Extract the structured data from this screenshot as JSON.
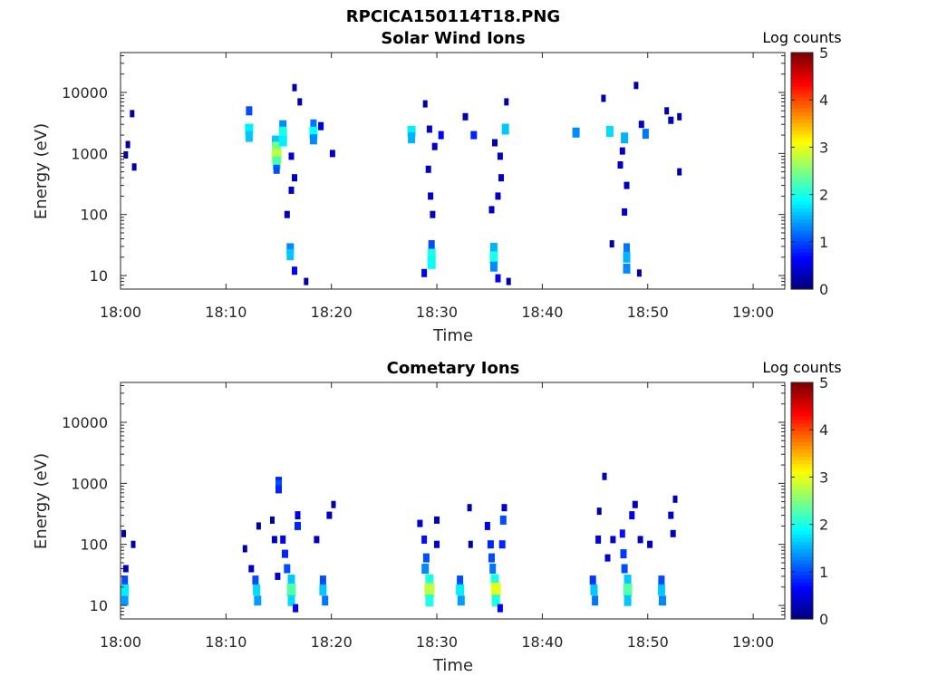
{
  "figure_title": "RPCICA150114T18.PNG",
  "chart_data": [
    {
      "type": "heatmap",
      "title": "Solar Wind Ions",
      "xlabel": "Time",
      "ylabel": "Energy (eV)",
      "x_ticks": [
        "18:00",
        "18:10",
        "18:20",
        "18:30",
        "18:40",
        "18:50",
        "19:00"
      ],
      "x_range_minutes": [
        0,
        63
      ],
      "y_scale": "log",
      "y_ticks": [
        "10",
        "100",
        "1000",
        "10000"
      ],
      "y_range": [
        6,
        45000
      ],
      "colorbar": {
        "label": "Log counts",
        "ticks": [
          "0",
          "1",
          "2",
          "3",
          "4",
          "5"
        ],
        "range": [
          0,
          5
        ],
        "colormap": "jet"
      },
      "patches": [
        {
          "t": 1.1,
          "e": 4500,
          "v": 0.2
        },
        {
          "t": 0.7,
          "e": 1400,
          "v": 0.2
        },
        {
          "t": 0.5,
          "e": 950,
          "v": 0.2
        },
        {
          "t": 1.3,
          "e": 600,
          "v": 0.2
        },
        {
          "t": 12.2,
          "e": 5000,
          "v": 1.0
        },
        {
          "t": 12.2,
          "e": 2500,
          "v": 1.8
        },
        {
          "t": 12.2,
          "e": 1900,
          "v": 1.6
        },
        {
          "t": 14.7,
          "e": 1600,
          "v": 1.6
        },
        {
          "t": 14.8,
          "e": 1200,
          "v": 2.5
        },
        {
          "t": 14.8,
          "e": 900,
          "v": 2.8
        },
        {
          "t": 14.8,
          "e": 700,
          "v": 2.2
        },
        {
          "t": 14.8,
          "e": 550,
          "v": 1.0
        },
        {
          "t": 15.4,
          "e": 2900,
          "v": 1.3
        },
        {
          "t": 15.4,
          "e": 2200,
          "v": 2.0
        },
        {
          "t": 15.4,
          "e": 1600,
          "v": 1.8
        },
        {
          "t": 16.2,
          "e": 900,
          "v": 0.4
        },
        {
          "t": 16.5,
          "e": 400,
          "v": 0.3
        },
        {
          "t": 16.2,
          "e": 250,
          "v": 0.3
        },
        {
          "t": 15.8,
          "e": 100,
          "v": 0.3
        },
        {
          "t": 16.5,
          "e": 12000,
          "v": 0.2
        },
        {
          "t": 17.0,
          "e": 7000,
          "v": 0.2
        },
        {
          "t": 18.3,
          "e": 3000,
          "v": 1.2
        },
        {
          "t": 18.3,
          "e": 2200,
          "v": 1.9
        },
        {
          "t": 18.3,
          "e": 1700,
          "v": 1.3
        },
        {
          "t": 19.0,
          "e": 2800,
          "v": 0.5
        },
        {
          "t": 20.1,
          "e": 1000,
          "v": 0.3
        },
        {
          "t": 16.1,
          "e": 28,
          "v": 1.3
        },
        {
          "t": 16.1,
          "e": 22,
          "v": 1.6
        },
        {
          "t": 16.5,
          "e": 12,
          "v": 0.6
        },
        {
          "t": 17.6,
          "e": 8,
          "v": 0.2
        },
        {
          "t": 27.6,
          "e": 2300,
          "v": 1.8
        },
        {
          "t": 27.6,
          "e": 1800,
          "v": 1.5
        },
        {
          "t": 28.9,
          "e": 6500,
          "v": 0.2
        },
        {
          "t": 29.3,
          "e": 2500,
          "v": 0.4
        },
        {
          "t": 29.8,
          "e": 1300,
          "v": 0.3
        },
        {
          "t": 29.2,
          "e": 550,
          "v": 0.3
        },
        {
          "t": 29.4,
          "e": 200,
          "v": 0.3
        },
        {
          "t": 29.6,
          "e": 100,
          "v": 0.3
        },
        {
          "t": 30.4,
          "e": 2000,
          "v": 0.6
        },
        {
          "t": 29.5,
          "e": 32,
          "v": 1.0
        },
        {
          "t": 29.5,
          "e": 22,
          "v": 2.0
        },
        {
          "t": 29.5,
          "e": 16,
          "v": 1.9
        },
        {
          "t": 28.8,
          "e": 11,
          "v": 0.6
        },
        {
          "t": 32.7,
          "e": 4000,
          "v": 0.3
        },
        {
          "t": 33.5,
          "e": 2000,
          "v": 0.8
        },
        {
          "t": 35.5,
          "e": 1500,
          "v": 0.3
        },
        {
          "t": 36.0,
          "e": 900,
          "v": 0.3
        },
        {
          "t": 36.1,
          "e": 400,
          "v": 0.3
        },
        {
          "t": 35.8,
          "e": 200,
          "v": 0.3
        },
        {
          "t": 35.2,
          "e": 120,
          "v": 0.3
        },
        {
          "t": 36.5,
          "e": 2500,
          "v": 1.6
        },
        {
          "t": 36.6,
          "e": 7000,
          "v": 0.2
        },
        {
          "t": 35.4,
          "e": 28,
          "v": 1.5
        },
        {
          "t": 35.4,
          "e": 20,
          "v": 2.0
        },
        {
          "t": 35.4,
          "e": 14,
          "v": 1.3
        },
        {
          "t": 35.8,
          "e": 9,
          "v": 0.6
        },
        {
          "t": 36.8,
          "e": 8,
          "v": 0.2
        },
        {
          "t": 43.2,
          "e": 2200,
          "v": 1.3
        },
        {
          "t": 45.8,
          "e": 8000,
          "v": 0.2
        },
        {
          "t": 46.4,
          "e": 2300,
          "v": 1.7
        },
        {
          "t": 47.8,
          "e": 1800,
          "v": 1.5
        },
        {
          "t": 47.6,
          "e": 1100,
          "v": 0.3
        },
        {
          "t": 47.4,
          "e": 650,
          "v": 0.3
        },
        {
          "t": 48.0,
          "e": 300,
          "v": 0.3
        },
        {
          "t": 47.8,
          "e": 110,
          "v": 0.3
        },
        {
          "t": 48.9,
          "e": 13000,
          "v": 0.2
        },
        {
          "t": 49.4,
          "e": 3000,
          "v": 0.4
        },
        {
          "t": 49.8,
          "e": 2100,
          "v": 1.2
        },
        {
          "t": 48.0,
          "e": 28,
          "v": 1.2
        },
        {
          "t": 48.0,
          "e": 20,
          "v": 1.5
        },
        {
          "t": 48.0,
          "e": 13,
          "v": 1.3
        },
        {
          "t": 46.6,
          "e": 33,
          "v": 0.2
        },
        {
          "t": 49.2,
          "e": 11,
          "v": 0.2
        },
        {
          "t": 51.8,
          "e": 5000,
          "v": 0.2
        },
        {
          "t": 52.2,
          "e": 3500,
          "v": 0.3
        },
        {
          "t": 53.0,
          "e": 4000,
          "v": 0.2
        },
        {
          "t": 53.0,
          "e": 500,
          "v": 0.2
        }
      ]
    },
    {
      "type": "heatmap",
      "title": "Cometary Ions",
      "xlabel": "Time",
      "ylabel": "Energy (eV)",
      "x_ticks": [
        "18:00",
        "18:10",
        "18:20",
        "18:30",
        "18:40",
        "18:50",
        "19:00"
      ],
      "x_range_minutes": [
        0,
        63
      ],
      "y_scale": "log",
      "y_ticks": [
        "10",
        "100",
        "1000",
        "10000"
      ],
      "y_range": [
        6,
        45000
      ],
      "colorbar": {
        "label": "Log counts",
        "ticks": [
          "0",
          "1",
          "2",
          "3",
          "4",
          "5"
        ],
        "range": [
          0,
          5
        ],
        "colormap": "jet"
      },
      "patches": [
        {
          "t": 0.3,
          "e": 150,
          "v": 0.2
        },
        {
          "t": 0.5,
          "e": 40,
          "v": 0.3
        },
        {
          "t": 0.4,
          "e": 26,
          "v": 1.0
        },
        {
          "t": 0.4,
          "e": 18,
          "v": 1.8
        },
        {
          "t": 0.4,
          "e": 12,
          "v": 1.4
        },
        {
          "t": 1.2,
          "e": 100,
          "v": 0.2
        },
        {
          "t": 11.8,
          "e": 85,
          "v": 0.2
        },
        {
          "t": 12.4,
          "e": 40,
          "v": 0.3
        },
        {
          "t": 13.1,
          "e": 200,
          "v": 0.2
        },
        {
          "t": 12.8,
          "e": 26,
          "v": 1.0
        },
        {
          "t": 12.9,
          "e": 18,
          "v": 1.7
        },
        {
          "t": 13.0,
          "e": 12,
          "v": 1.4
        },
        {
          "t": 14.4,
          "e": 250,
          "v": 0.2
        },
        {
          "t": 14.6,
          "e": 120,
          "v": 0.3
        },
        {
          "t": 14.9,
          "e": 30,
          "v": 0.4
        },
        {
          "t": 15.0,
          "e": 1100,
          "v": 0.8
        },
        {
          "t": 15.0,
          "e": 950,
          "v": 1.0
        },
        {
          "t": 15.0,
          "e": 800,
          "v": 0.8
        },
        {
          "t": 15.4,
          "e": 120,
          "v": 0.6
        },
        {
          "t": 15.6,
          "e": 70,
          "v": 0.8
        },
        {
          "t": 15.8,
          "e": 40,
          "v": 1.0
        },
        {
          "t": 16.2,
          "e": 26,
          "v": 1.6
        },
        {
          "t": 16.2,
          "e": 18,
          "v": 2.3
        },
        {
          "t": 16.2,
          "e": 12,
          "v": 1.7
        },
        {
          "t": 16.8,
          "e": 300,
          "v": 0.5
        },
        {
          "t": 16.8,
          "e": 200,
          "v": 0.8
        },
        {
          "t": 16.6,
          "e": 9,
          "v": 0.6
        },
        {
          "t": 18.6,
          "e": 120,
          "v": 0.3
        },
        {
          "t": 19.2,
          "e": 26,
          "v": 1.0
        },
        {
          "t": 19.2,
          "e": 18,
          "v": 1.6
        },
        {
          "t": 19.4,
          "e": 12,
          "v": 1.2
        },
        {
          "t": 19.8,
          "e": 300,
          "v": 0.3
        },
        {
          "t": 20.2,
          "e": 450,
          "v": 0.2
        },
        {
          "t": 28.4,
          "e": 220,
          "v": 0.4
        },
        {
          "t": 28.8,
          "e": 120,
          "v": 0.7
        },
        {
          "t": 29.0,
          "e": 60,
          "v": 1.0
        },
        {
          "t": 28.9,
          "e": 40,
          "v": 1.3
        },
        {
          "t": 29.3,
          "e": 26,
          "v": 2.0
        },
        {
          "t": 29.3,
          "e": 18,
          "v": 2.8
        },
        {
          "t": 29.3,
          "e": 12,
          "v": 2.0
        },
        {
          "t": 30.0,
          "e": 250,
          "v": 0.3
        },
        {
          "t": 30.0,
          "e": 100,
          "v": 0.4
        },
        {
          "t": 32.2,
          "e": 26,
          "v": 1.0
        },
        {
          "t": 32.2,
          "e": 18,
          "v": 1.8
        },
        {
          "t": 32.3,
          "e": 12,
          "v": 1.4
        },
        {
          "t": 33.1,
          "e": 400,
          "v": 0.2
        },
        {
          "t": 33.2,
          "e": 100,
          "v": 0.2
        },
        {
          "t": 34.8,
          "e": 200,
          "v": 0.6
        },
        {
          "t": 35.1,
          "e": 100,
          "v": 0.8
        },
        {
          "t": 35.2,
          "e": 60,
          "v": 1.0
        },
        {
          "t": 35.3,
          "e": 40,
          "v": 1.2
        },
        {
          "t": 35.5,
          "e": 26,
          "v": 2.0
        },
        {
          "t": 35.6,
          "e": 18,
          "v": 3.0
        },
        {
          "t": 35.6,
          "e": 12,
          "v": 2.0
        },
        {
          "t": 36.3,
          "e": 250,
          "v": 1.0
        },
        {
          "t": 36.4,
          "e": 400,
          "v": 0.4
        },
        {
          "t": 36.2,
          "e": 100,
          "v": 0.8
        },
        {
          "t": 36.0,
          "e": 9,
          "v": 0.6
        },
        {
          "t": 44.8,
          "e": 26,
          "v": 0.9
        },
        {
          "t": 44.9,
          "e": 18,
          "v": 1.6
        },
        {
          "t": 45.0,
          "e": 12,
          "v": 1.2
        },
        {
          "t": 45.4,
          "e": 350,
          "v": 0.2
        },
        {
          "t": 45.3,
          "e": 120,
          "v": 0.5
        },
        {
          "t": 45.9,
          "e": 1300,
          "v": 0.2
        },
        {
          "t": 46.2,
          "e": 60,
          "v": 0.4
        },
        {
          "t": 46.7,
          "e": 120,
          "v": 0.4
        },
        {
          "t": 47.6,
          "e": 150,
          "v": 0.7
        },
        {
          "t": 47.7,
          "e": 70,
          "v": 0.9
        },
        {
          "t": 47.8,
          "e": 40,
          "v": 1.0
        },
        {
          "t": 48.1,
          "e": 26,
          "v": 1.6
        },
        {
          "t": 48.1,
          "e": 18,
          "v": 2.3
        },
        {
          "t": 48.1,
          "e": 12,
          "v": 1.6
        },
        {
          "t": 48.5,
          "e": 300,
          "v": 0.5
        },
        {
          "t": 48.8,
          "e": 450,
          "v": 0.3
        },
        {
          "t": 49.3,
          "e": 120,
          "v": 0.3
        },
        {
          "t": 50.2,
          "e": 100,
          "v": 0.3
        },
        {
          "t": 51.3,
          "e": 26,
          "v": 1.0
        },
        {
          "t": 51.3,
          "e": 18,
          "v": 1.6
        },
        {
          "t": 51.4,
          "e": 12,
          "v": 1.3
        },
        {
          "t": 52.2,
          "e": 300,
          "v": 0.4
        },
        {
          "t": 52.4,
          "e": 150,
          "v": 0.3
        },
        {
          "t": 52.6,
          "e": 550,
          "v": 0.2
        }
      ]
    }
  ]
}
